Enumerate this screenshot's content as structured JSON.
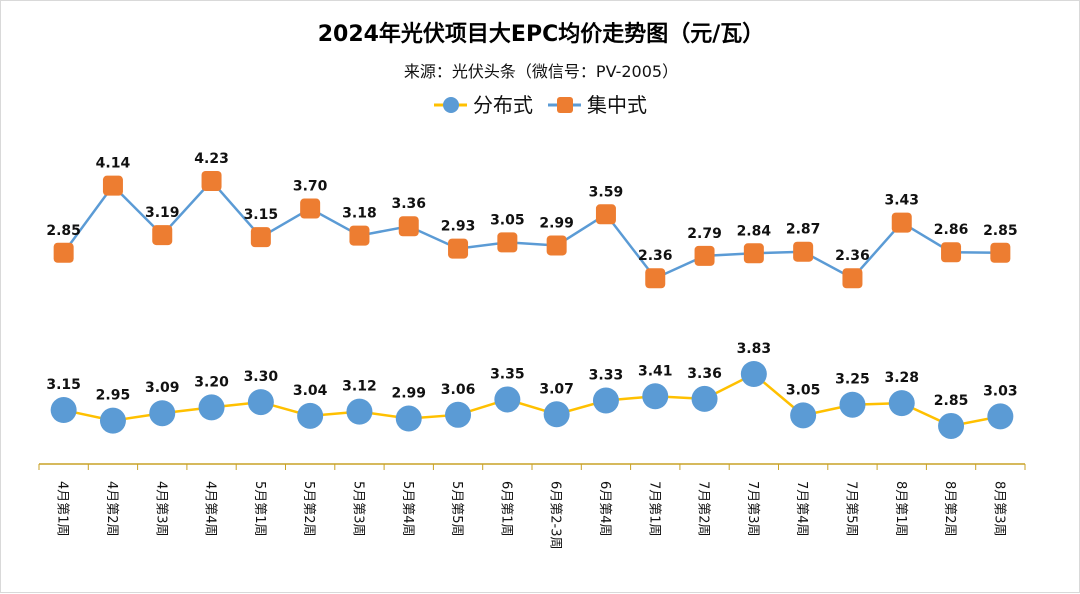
{
  "chart_data": {
    "type": "line",
    "title": "2024年光伏项目大EPC均价走势图（元/瓦）",
    "subtitle": "来源：光伏头条（微信号：PV-2005）",
    "legend_position": "top",
    "categories": [
      "4月第1周",
      "4月第2周",
      "4月第3周",
      "4月第4周",
      "5月第1周",
      "5月第2周",
      "5月第3周",
      "5月第4周",
      "5月第5周",
      "6月第1周",
      "6月第2-3周",
      "6月第4周",
      "7月第1周",
      "7月第2周",
      "7月第3周",
      "7月第4周",
      "7月第5周",
      "8月第1周",
      "8月第2周",
      "8月第3周"
    ],
    "series": [
      {
        "name": "分布式",
        "line_color": "#FFC000",
        "marker_color": "#5B9BD5",
        "marker": "circle",
        "values": [
          3.15,
          2.95,
          3.09,
          3.2,
          3.3,
          3.04,
          3.12,
          2.99,
          3.06,
          3.35,
          3.07,
          3.33,
          3.41,
          3.36,
          3.83,
          3.05,
          3.25,
          3.28,
          2.85,
          3.03
        ]
      },
      {
        "name": "集中式",
        "line_color": "#5B9BD5",
        "marker_color": "#ED7D31",
        "marker": "square",
        "values": [
          2.85,
          4.14,
          3.19,
          4.23,
          3.15,
          3.7,
          3.18,
          3.36,
          2.93,
          3.05,
          2.99,
          3.59,
          2.36,
          2.79,
          2.84,
          2.87,
          2.36,
          3.43,
          2.86,
          2.85
        ]
      }
    ],
    "xlabel": "",
    "ylabel": "",
    "grid": false,
    "axis_color": "#C9A227"
  }
}
